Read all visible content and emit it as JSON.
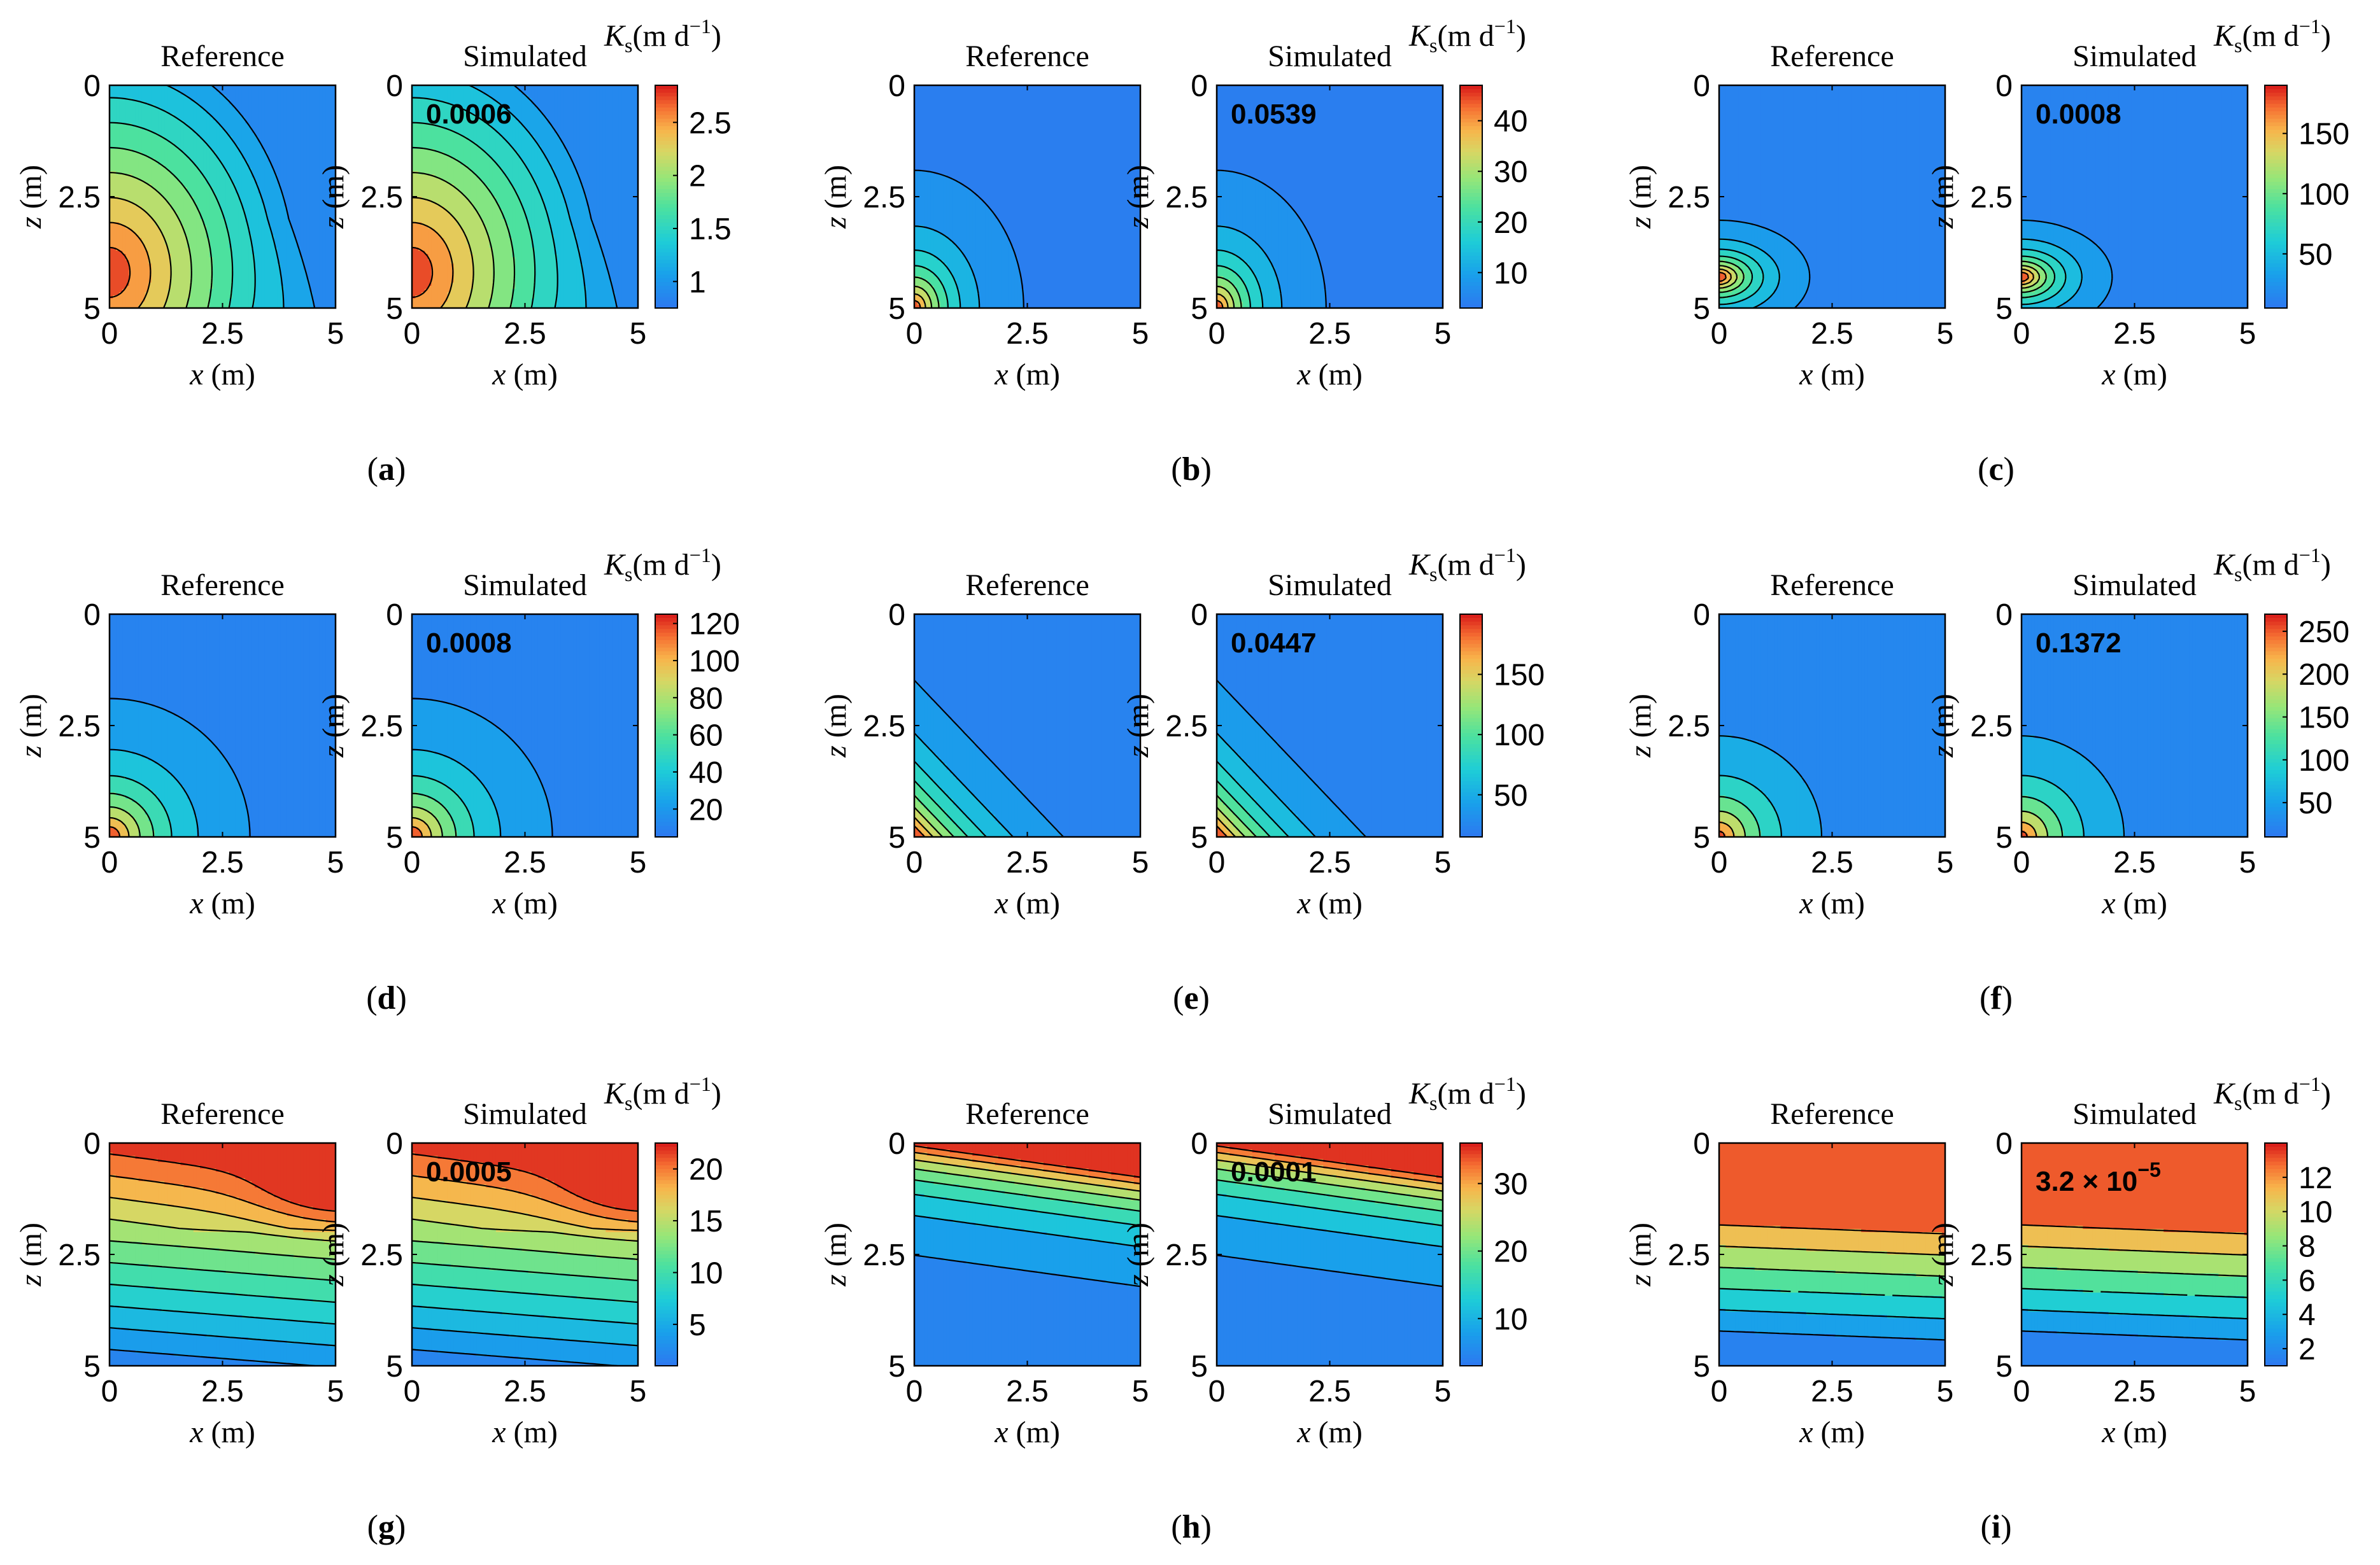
{
  "figure": {
    "panel_titles": {
      "reference": "Reference",
      "simulated": "Simulated"
    },
    "colorbar_label": {
      "symbol": "K",
      "subscript": "s",
      "unit_open": "(m d",
      "exponent": "−1",
      "unit_close": ")"
    },
    "axes": {
      "x_label_var": "x",
      "x_label_unit": " (m)",
      "z_label_var": "z",
      "z_label_unit": " (m)",
      "x_ticks": [
        "0",
        "2.5",
        "5"
      ],
      "z_ticks": [
        "0",
        "2.5",
        "5"
      ]
    }
  },
  "chart_data": [
    {
      "id": "a",
      "type": "contour",
      "subplot_label": "a",
      "error_text": "0.0006",
      "xlim": [
        0,
        5
      ],
      "zlim": [
        0,
        5
      ],
      "z_axis_inverted": true,
      "colorbar": {
        "range": [
          0.75,
          2.85
        ],
        "ticks": [
          "1",
          "1.5",
          "2",
          "2.5"
        ]
      },
      "pattern": "source at x=0, z≈4.2; lower-right corner also moderate",
      "levels": [
        1,
        1.2,
        1.4,
        1.6,
        1.8,
        2,
        2.2,
        2.4,
        2.6
      ]
    },
    {
      "id": "b",
      "type": "contour",
      "subplot_label": "b",
      "error_text": "0.0539",
      "xlim": [
        0,
        5
      ],
      "zlim": [
        0,
        5
      ],
      "z_axis_inverted": true,
      "colorbar": {
        "range": [
          3,
          47
        ],
        "ticks": [
          "10",
          "20",
          "30",
          "40"
        ]
      },
      "pattern": "source at bottom-left corner",
      "levels": [
        5,
        10,
        15,
        20,
        25,
        30,
        35,
        40
      ]
    },
    {
      "id": "c",
      "type": "contour",
      "subplot_label": "c",
      "error_text": "0.0008",
      "xlim": [
        0,
        5
      ],
      "zlim": [
        0,
        5
      ],
      "z_axis_inverted": true,
      "colorbar": {
        "range": [
          5,
          190
        ],
        "ticks": [
          "50",
          "100",
          "150"
        ]
      },
      "pattern": "source near bottom-left, elongated",
      "levels": [
        20,
        40,
        60,
        80,
        100,
        120,
        140,
        160
      ]
    },
    {
      "id": "d",
      "type": "contour",
      "subplot_label": "d",
      "error_text": "0.0008",
      "xlim": [
        0,
        5
      ],
      "zlim": [
        0,
        5
      ],
      "z_axis_inverted": true,
      "colorbar": {
        "range": [
          5,
          125
        ],
        "ticks": [
          "20",
          "40",
          "60",
          "80",
          "100",
          "120"
        ]
      },
      "pattern": "quarter-circle rings from bottom-left",
      "levels": [
        15,
        30,
        45,
        60,
        75,
        90,
        105
      ]
    },
    {
      "id": "e",
      "type": "contour",
      "subplot_label": "e",
      "error_text": "0.0447",
      "xlim": [
        0,
        5
      ],
      "zlim": [
        0,
        5
      ],
      "z_axis_inverted": true,
      "colorbar": {
        "range": [
          15,
          200
        ],
        "ticks": [
          "50",
          "100",
          "150"
        ]
      },
      "pattern": "diagonal bands increasing toward bottom-left",
      "levels": [
        30,
        50,
        70,
        90,
        110,
        130,
        150,
        170
      ]
    },
    {
      "id": "f",
      "type": "contour",
      "subplot_label": "f",
      "error_text": "0.1372",
      "xlim": [
        0,
        5
      ],
      "zlim": [
        0,
        5
      ],
      "z_axis_inverted": true,
      "colorbar": {
        "range": [
          10,
          270
        ],
        "ticks": [
          "50",
          "100",
          "150",
          "200",
          "250"
        ]
      },
      "pattern": "wide rings from bottom-left",
      "levels": [
        40,
        80,
        120,
        160,
        200,
        240
      ]
    },
    {
      "id": "g",
      "type": "contour",
      "subplot_label": "g",
      "error_text": "0.0005",
      "xlim": [
        0,
        5
      ],
      "zlim": [
        0,
        5
      ],
      "z_axis_inverted": true,
      "colorbar": {
        "range": [
          1,
          22.5
        ],
        "ticks": [
          "5",
          "10",
          "15",
          "20"
        ]
      },
      "pattern": "high near top-right (z≈1), decreasing with depth, tilted layers",
      "levels": [
        3,
        5,
        7,
        9,
        11,
        13,
        15,
        17,
        19,
        21
      ]
    },
    {
      "id": "h",
      "type": "contour",
      "subplot_label": "h",
      "error_text": "0.0001",
      "xlim": [
        0,
        5
      ],
      "zlim": [
        0,
        5
      ],
      "z_axis_inverted": true,
      "colorbar": {
        "range": [
          3,
          36
        ],
        "ticks": [
          "10",
          "20",
          "30"
        ]
      },
      "pattern": "horizontal layers, high at top, slight tilt",
      "levels": [
        6,
        10,
        14,
        18,
        22,
        26,
        30,
        34
      ]
    },
    {
      "id": "i",
      "type": "contour",
      "subplot_label": "i",
      "error_text_mantissa": "3.2 × 10",
      "error_text_exponent": "−5",
      "xlim": [
        0,
        5
      ],
      "zlim": [
        0,
        5
      ],
      "z_axis_inverted": true,
      "colorbar": {
        "range": [
          1,
          14
        ],
        "ticks": [
          "2",
          "4",
          "6",
          "8",
          "10",
          "12"
        ]
      },
      "pattern": "horizontal layers, high plateau at top",
      "levels": [
        2,
        4,
        6,
        8,
        10,
        12
      ]
    }
  ]
}
